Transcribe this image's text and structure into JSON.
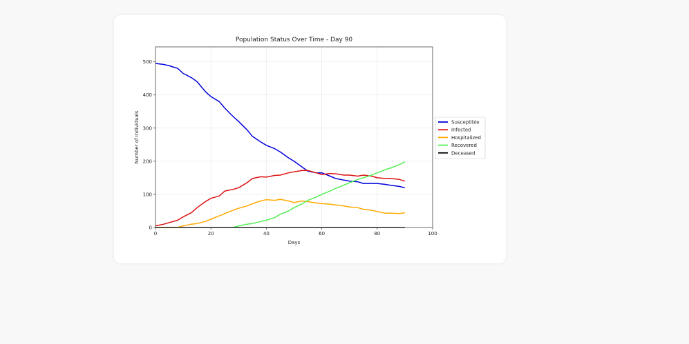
{
  "chart_data": {
    "type": "line",
    "title": "Population Status Over Time - Day 90",
    "xlabel": "Days",
    "ylabel": "Number of Individuals",
    "xlim": [
      0,
      100
    ],
    "ylim": [
      0,
      545
    ],
    "xticks": [
      0,
      20,
      40,
      60,
      80,
      100
    ],
    "yticks": [
      0,
      100,
      200,
      300,
      400,
      500
    ],
    "grid": true,
    "legend_position": "center-right, outside plot",
    "series": [
      {
        "name": "Susceptible",
        "color": "#0000dd",
        "points": [
          [
            0,
            495
          ],
          [
            3,
            492
          ],
          [
            5,
            488
          ],
          [
            8,
            480
          ],
          [
            10,
            465
          ],
          [
            13,
            452
          ],
          [
            15,
            440
          ],
          [
            18,
            410
          ],
          [
            20,
            395
          ],
          [
            23,
            380
          ],
          [
            25,
            360
          ],
          [
            28,
            335
          ],
          [
            30,
            320
          ],
          [
            33,
            295
          ],
          [
            35,
            275
          ],
          [
            38,
            258
          ],
          [
            40,
            248
          ],
          [
            43,
            238
          ],
          [
            45,
            228
          ],
          [
            48,
            210
          ],
          [
            50,
            200
          ],
          [
            53,
            182
          ],
          [
            55,
            170
          ],
          [
            58,
            165
          ],
          [
            60,
            165
          ],
          [
            63,
            155
          ],
          [
            65,
            148
          ],
          [
            68,
            143
          ],
          [
            70,
            140
          ],
          [
            73,
            138
          ],
          [
            75,
            133
          ],
          [
            78,
            133
          ],
          [
            80,
            133
          ],
          [
            83,
            130
          ],
          [
            85,
            127
          ],
          [
            88,
            124
          ],
          [
            90,
            120
          ]
        ]
      },
      {
        "name": "Infected",
        "color": "#dd1111",
        "points": [
          [
            0,
            5
          ],
          [
            3,
            10
          ],
          [
            5,
            15
          ],
          [
            8,
            22
          ],
          [
            10,
            32
          ],
          [
            13,
            45
          ],
          [
            15,
            60
          ],
          [
            18,
            78
          ],
          [
            20,
            88
          ],
          [
            23,
            95
          ],
          [
            25,
            110
          ],
          [
            28,
            115
          ],
          [
            30,
            120
          ],
          [
            33,
            135
          ],
          [
            35,
            148
          ],
          [
            38,
            153
          ],
          [
            40,
            152
          ],
          [
            43,
            157
          ],
          [
            45,
            158
          ],
          [
            48,
            165
          ],
          [
            50,
            168
          ],
          [
            53,
            172
          ],
          [
            55,
            172
          ],
          [
            58,
            165
          ],
          [
            60,
            160
          ],
          [
            63,
            163
          ],
          [
            65,
            162
          ],
          [
            68,
            158
          ],
          [
            70,
            158
          ],
          [
            73,
            155
          ],
          [
            75,
            158
          ],
          [
            78,
            155
          ],
          [
            80,
            150
          ],
          [
            83,
            148
          ],
          [
            85,
            148
          ],
          [
            88,
            145
          ],
          [
            90,
            140
          ]
        ]
      },
      {
        "name": "Hospitalized",
        "color": "#ffaa00",
        "points": [
          [
            0,
            0
          ],
          [
            5,
            0
          ],
          [
            8,
            0
          ],
          [
            10,
            5
          ],
          [
            13,
            10
          ],
          [
            15,
            12
          ],
          [
            18,
            18
          ],
          [
            20,
            25
          ],
          [
            23,
            35
          ],
          [
            25,
            42
          ],
          [
            28,
            52
          ],
          [
            30,
            58
          ],
          [
            33,
            65
          ],
          [
            35,
            72
          ],
          [
            38,
            80
          ],
          [
            40,
            84
          ],
          [
            43,
            82
          ],
          [
            45,
            85
          ],
          [
            48,
            80
          ],
          [
            50,
            75
          ],
          [
            53,
            80
          ],
          [
            55,
            78
          ],
          [
            58,
            74
          ],
          [
            60,
            72
          ],
          [
            63,
            70
          ],
          [
            65,
            68
          ],
          [
            68,
            65
          ],
          [
            70,
            62
          ],
          [
            73,
            60
          ],
          [
            75,
            55
          ],
          [
            78,
            52
          ],
          [
            80,
            48
          ],
          [
            83,
            43
          ],
          [
            85,
            43
          ],
          [
            88,
            42
          ],
          [
            90,
            44
          ]
        ]
      },
      {
        "name": "Recovered",
        "color": "#55ee55",
        "points": [
          [
            28,
            0
          ],
          [
            30,
            5
          ],
          [
            33,
            10
          ],
          [
            35,
            12
          ],
          [
            38,
            18
          ],
          [
            40,
            22
          ],
          [
            43,
            30
          ],
          [
            45,
            40
          ],
          [
            48,
            50
          ],
          [
            50,
            60
          ],
          [
            53,
            72
          ],
          [
            55,
            82
          ],
          [
            58,
            92
          ],
          [
            60,
            100
          ],
          [
            63,
            110
          ],
          [
            65,
            118
          ],
          [
            68,
            128
          ],
          [
            70,
            135
          ],
          [
            73,
            145
          ],
          [
            75,
            150
          ],
          [
            78,
            158
          ],
          [
            80,
            165
          ],
          [
            83,
            175
          ],
          [
            85,
            180
          ],
          [
            88,
            190
          ],
          [
            90,
            198
          ]
        ]
      },
      {
        "name": "Deceased",
        "color": "#000000",
        "points": [
          [
            0,
            0
          ],
          [
            90,
            0
          ]
        ]
      }
    ]
  }
}
